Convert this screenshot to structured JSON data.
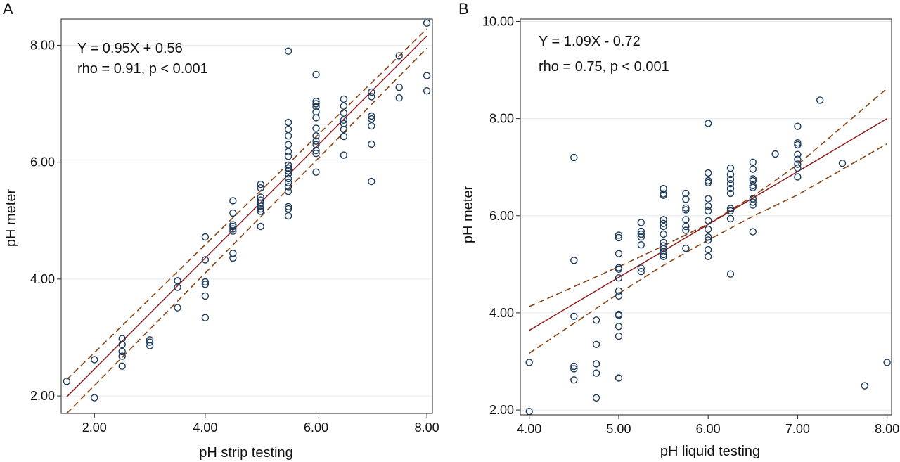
{
  "chart_data": [
    {
      "type": "scatter",
      "panel_label": "A",
      "title": "",
      "xlabel": "pH strip testing",
      "ylabel": "pH meter",
      "xlim": [
        1.4,
        8.1
      ],
      "ylim": [
        1.7,
        8.45
      ],
      "xticks": [
        "2.00",
        "4.00",
        "6.00",
        "8.00"
      ],
      "xtick_values": [
        2,
        4,
        6,
        8
      ],
      "yticks": [
        "2.00",
        "4.00",
        "6.00",
        "8.00"
      ],
      "ytick_values": [
        2,
        4,
        6,
        8
      ],
      "grid": "horizontal",
      "annotations": [
        "Y = 0.95X + 0.56",
        "rho = 0.91, p < 0.001"
      ],
      "fit_line": {
        "slope": 0.95,
        "intercept": 0.56,
        "color": "#8b1a1a"
      },
      "confidence_band": {
        "color": "#8b4513",
        "upper": [
          [
            1.5,
            2.28
          ],
          [
            8.0,
            8.28
          ]
        ],
        "lower": [
          [
            1.5,
            1.7
          ],
          [
            8.0,
            7.95
          ]
        ]
      },
      "points": [
        [
          1.5,
          2.25
        ],
        [
          2.0,
          2.62
        ],
        [
          2.0,
          1.97
        ],
        [
          2.5,
          2.98
        ],
        [
          2.5,
          2.88
        ],
        [
          2.5,
          2.76
        ],
        [
          2.5,
          2.68
        ],
        [
          2.5,
          2.51
        ],
        [
          3.0,
          2.96
        ],
        [
          3.0,
          2.92
        ],
        [
          3.0,
          2.86
        ],
        [
          3.5,
          3.97
        ],
        [
          3.5,
          3.86
        ],
        [
          3.5,
          3.51
        ],
        [
          4.0,
          4.72
        ],
        [
          4.0,
          4.33
        ],
        [
          4.0,
          3.95
        ],
        [
          4.0,
          3.91
        ],
        [
          4.0,
          3.71
        ],
        [
          4.0,
          3.34
        ],
        [
          4.5,
          5.34
        ],
        [
          4.5,
          5.13
        ],
        [
          4.5,
          4.93
        ],
        [
          4.5,
          4.9
        ],
        [
          4.5,
          4.86
        ],
        [
          4.5,
          4.82
        ],
        [
          4.5,
          4.44
        ],
        [
          4.5,
          4.36
        ],
        [
          5.0,
          5.62
        ],
        [
          5.0,
          5.56
        ],
        [
          5.0,
          5.4
        ],
        [
          5.0,
          5.35
        ],
        [
          5.0,
          5.3
        ],
        [
          5.0,
          5.25
        ],
        [
          5.0,
          5.2
        ],
        [
          5.0,
          5.16
        ],
        [
          5.0,
          4.9
        ],
        [
          5.5,
          7.9
        ],
        [
          5.5,
          6.68
        ],
        [
          5.5,
          6.56
        ],
        [
          5.5,
          6.45
        ],
        [
          5.5,
          6.3
        ],
        [
          5.5,
          6.18
        ],
        [
          5.5,
          6.1
        ],
        [
          5.5,
          5.95
        ],
        [
          5.5,
          5.9
        ],
        [
          5.5,
          5.85
        ],
        [
          5.5,
          5.8
        ],
        [
          5.5,
          5.72
        ],
        [
          5.5,
          5.65
        ],
        [
          5.5,
          5.58
        ],
        [
          5.5,
          5.5
        ],
        [
          5.5,
          5.24
        ],
        [
          5.5,
          5.2
        ],
        [
          5.5,
          5.08
        ],
        [
          6.0,
          7.5
        ],
        [
          6.0,
          7.04
        ],
        [
          6.0,
          7.0
        ],
        [
          6.0,
          6.95
        ],
        [
          6.0,
          6.86
        ],
        [
          6.0,
          6.76
        ],
        [
          6.0,
          6.58
        ],
        [
          6.0,
          6.45
        ],
        [
          6.0,
          6.36
        ],
        [
          6.0,
          6.3
        ],
        [
          6.0,
          6.2
        ],
        [
          6.0,
          6.15
        ],
        [
          6.0,
          5.83
        ],
        [
          6.5,
          7.08
        ],
        [
          6.5,
          6.96
        ],
        [
          6.5,
          6.84
        ],
        [
          6.5,
          6.72
        ],
        [
          6.5,
          6.66
        ],
        [
          6.5,
          6.56
        ],
        [
          6.5,
          6.44
        ],
        [
          6.5,
          6.12
        ],
        [
          7.0,
          7.2
        ],
        [
          7.0,
          7.12
        ],
        [
          7.0,
          6.79
        ],
        [
          7.0,
          6.74
        ],
        [
          7.0,
          6.62
        ],
        [
          7.0,
          6.31
        ],
        [
          7.0,
          5.67
        ],
        [
          7.5,
          7.82
        ],
        [
          7.5,
          7.28
        ],
        [
          7.5,
          7.1
        ],
        [
          8.0,
          8.38
        ],
        [
          8.0,
          7.48
        ],
        [
          8.0,
          7.22
        ]
      ]
    },
    {
      "type": "scatter",
      "panel_label": "B",
      "title": "",
      "xlabel": "pH liquid testing",
      "ylabel": "pH meter",
      "xlim": [
        3.9,
        8.05
      ],
      "ylim": [
        1.9,
        10.05
      ],
      "xticks": [
        "4.00",
        "5.00",
        "6.00",
        "7.00",
        "8.00"
      ],
      "xtick_values": [
        4,
        5,
        6,
        7,
        8
      ],
      "yticks": [
        "2.00",
        "4.00",
        "6.00",
        "8.00",
        "10.00"
      ],
      "ytick_values": [
        2,
        4,
        6,
        8,
        10
      ],
      "grid": "horizontal",
      "annotations": [
        "Y = 1.09X - 0.72",
        "rho = 0.75, p < 0.001"
      ],
      "fit_line": {
        "slope": 1.09,
        "intercept": -0.72,
        "color": "#8b1a1a"
      },
      "confidence_band": {
        "color": "#8b4513",
        "upper": [
          [
            4.0,
            4.13
          ],
          [
            5.0,
            4.95
          ],
          [
            5.5,
            5.38
          ],
          [
            6.0,
            5.83
          ],
          [
            6.5,
            6.4
          ],
          [
            7.0,
            7.05
          ],
          [
            8.0,
            8.62
          ]
        ],
        "lower": [
          [
            4.0,
            3.17
          ],
          [
            5.0,
            4.4
          ],
          [
            5.5,
            4.98
          ],
          [
            6.0,
            5.5
          ],
          [
            6.5,
            5.99
          ],
          [
            7.0,
            6.43
          ],
          [
            8.0,
            7.48
          ]
        ]
      },
      "points": [
        [
          4.0,
          2.98
        ],
        [
          4.0,
          1.97
        ],
        [
          4.5,
          7.2
        ],
        [
          4.5,
          5.08
        ],
        [
          4.5,
          3.93
        ],
        [
          4.5,
          2.9
        ],
        [
          4.5,
          2.85
        ],
        [
          4.5,
          2.62
        ],
        [
          4.75,
          3.85
        ],
        [
          4.75,
          3.35
        ],
        [
          4.75,
          2.95
        ],
        [
          4.75,
          2.76
        ],
        [
          4.75,
          2.25
        ],
        [
          5.0,
          5.6
        ],
        [
          5.0,
          5.55
        ],
        [
          5.0,
          5.22
        ],
        [
          5.0,
          4.93
        ],
        [
          5.0,
          4.9
        ],
        [
          5.0,
          4.72
        ],
        [
          5.0,
          4.45
        ],
        [
          5.0,
          4.35
        ],
        [
          5.0,
          3.97
        ],
        [
          5.0,
          3.95
        ],
        [
          5.0,
          3.72
        ],
        [
          5.0,
          3.52
        ],
        [
          5.0,
          2.66
        ],
        [
          5.25,
          5.86
        ],
        [
          5.25,
          5.68
        ],
        [
          5.25,
          5.62
        ],
        [
          5.25,
          5.56
        ],
        [
          5.25,
          5.4
        ],
        [
          5.25,
          4.92
        ],
        [
          5.25,
          4.85
        ],
        [
          5.5,
          6.56
        ],
        [
          5.5,
          6.45
        ],
        [
          5.5,
          6.42
        ],
        [
          5.5,
          5.92
        ],
        [
          5.5,
          5.84
        ],
        [
          5.5,
          5.78
        ],
        [
          5.5,
          5.62
        ],
        [
          5.5,
          5.45
        ],
        [
          5.5,
          5.38
        ],
        [
          5.5,
          5.32
        ],
        [
          5.5,
          5.26
        ],
        [
          5.5,
          5.2
        ],
        [
          5.5,
          5.16
        ],
        [
          5.75,
          6.46
        ],
        [
          5.75,
          6.34
        ],
        [
          5.75,
          6.16
        ],
        [
          5.75,
          6.12
        ],
        [
          5.75,
          5.92
        ],
        [
          5.75,
          5.78
        ],
        [
          5.75,
          5.7
        ],
        [
          5.75,
          5.33
        ],
        [
          6.0,
          7.9
        ],
        [
          6.0,
          6.88
        ],
        [
          6.0,
          6.72
        ],
        [
          6.0,
          6.68
        ],
        [
          6.0,
          6.35
        ],
        [
          6.0,
          6.2
        ],
        [
          6.0,
          6.1
        ],
        [
          6.0,
          5.9
        ],
        [
          6.0,
          5.72
        ],
        [
          6.0,
          5.56
        ],
        [
          6.0,
          5.5
        ],
        [
          6.0,
          5.3
        ],
        [
          6.0,
          5.16
        ],
        [
          6.25,
          6.98
        ],
        [
          6.25,
          6.85
        ],
        [
          6.25,
          6.75
        ],
        [
          6.25,
          6.66
        ],
        [
          6.25,
          6.56
        ],
        [
          6.25,
          6.46
        ],
        [
          6.25,
          6.15
        ],
        [
          6.25,
          6.1
        ],
        [
          6.25,
          5.94
        ],
        [
          6.25,
          4.8
        ],
        [
          6.5,
          7.1
        ],
        [
          6.5,
          6.96
        ],
        [
          6.5,
          6.76
        ],
        [
          6.5,
          6.72
        ],
        [
          6.5,
          6.62
        ],
        [
          6.5,
          6.58
        ],
        [
          6.5,
          6.35
        ],
        [
          6.5,
          6.28
        ],
        [
          6.5,
          6.22
        ],
        [
          6.5,
          5.67
        ],
        [
          6.75,
          7.27
        ],
        [
          7.0,
          7.84
        ],
        [
          7.0,
          7.5
        ],
        [
          7.0,
          7.46
        ],
        [
          7.0,
          7.26
        ],
        [
          7.0,
          7.16
        ],
        [
          7.0,
          7.06
        ],
        [
          7.0,
          6.98
        ],
        [
          7.0,
          6.8
        ],
        [
          7.25,
          8.38
        ],
        [
          7.5,
          7.08
        ],
        [
          7.75,
          2.5
        ],
        [
          8.0,
          2.98
        ]
      ]
    }
  ]
}
